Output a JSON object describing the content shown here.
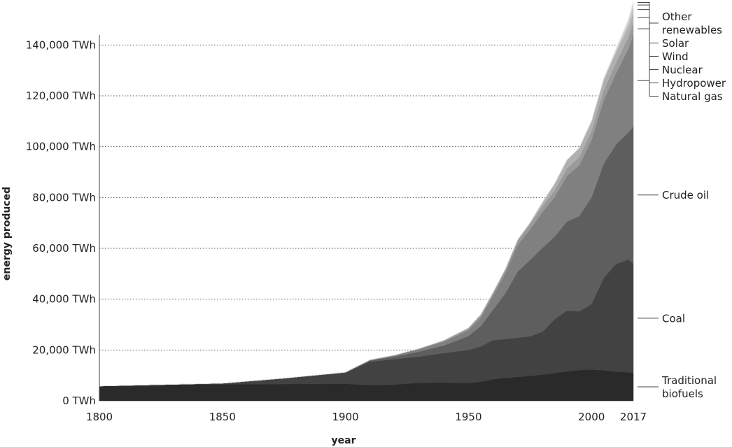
{
  "chart_data": {
    "type": "area",
    "stacked": true,
    "xlabel": "year",
    "ylabel": "energy produced",
    "xlim": [
      1800,
      2017
    ],
    "ylim": [
      0,
      150000
    ],
    "x_ticks": [
      "1800",
      "1850",
      "1900",
      "1950",
      "2000",
      "2017"
    ],
    "y_ticks": [
      "0 TWh",
      "20,000 TWh",
      "40,000 TWh",
      "60,000 TWh",
      "80,000 TWh",
      "100,000 TWh",
      "120,000 TWh",
      "140,000 TWh"
    ],
    "grid": "horizontal dotted",
    "x": [
      1800,
      1825,
      1850,
      1875,
      1900,
      1910,
      1920,
      1930,
      1940,
      1950,
      1955,
      1960,
      1965,
      1970,
      1975,
      1980,
      1985,
      1990,
      1995,
      2000,
      2005,
      2010,
      2015,
      2017
    ],
    "series": [
      {
        "name": "Traditional biofuels",
        "color": "#2a2a2a",
        "values": [
          5800,
          6300,
          6500,
          6600,
          6700,
          6200,
          6400,
          7100,
          7200,
          7000,
          7500,
          8500,
          9000,
          9400,
          9800,
          10300,
          10900,
          11600,
          12100,
          12300,
          12000,
          11500,
          11200,
          11000
        ]
      },
      {
        "name": "Coal",
        "color": "#424242",
        "values": [
          0,
          50,
          400,
          2300,
          4300,
          9200,
          10000,
          10300,
          11600,
          13000,
          13900,
          15400,
          15300,
          15400,
          15600,
          16800,
          21200,
          23900,
          23100,
          25700,
          36400,
          42400,
          44400,
          43000
        ]
      },
      {
        "name": "Crude oil",
        "color": "#5e5e5e",
        "values": [
          0,
          0,
          0,
          0,
          200,
          500,
          1000,
          2000,
          3000,
          5500,
          8000,
          12000,
          18000,
          26000,
          30000,
          33000,
          32500,
          35000,
          37500,
          42000,
          45000,
          47000,
          50000,
          54000
        ]
      },
      {
        "name": "Natural gas",
        "color": "#808080",
        "values": [
          0,
          0,
          0,
          0,
          50,
          200,
          500,
          1000,
          1500,
          2300,
          3500,
          5500,
          8000,
          10500,
          12000,
          14000,
          15500,
          18000,
          20000,
          22500,
          25000,
          28000,
          33000,
          36000
        ]
      },
      {
        "name": "Hydropower",
        "color": "#9a9a9a",
        "values": [
          0,
          0,
          0,
          0,
          20,
          60,
          100,
          200,
          500,
          900,
          1100,
          1300,
          1500,
          1800,
          2000,
          2400,
          2700,
          3000,
          3200,
          3500,
          3800,
          4200,
          4600,
          4800
        ]
      },
      {
        "name": "Nuclear",
        "color": "#b0b0b0",
        "values": [
          0,
          0,
          0,
          0,
          0,
          0,
          0,
          0,
          0,
          0,
          0,
          20,
          100,
          300,
          700,
          1500,
          2600,
          3200,
          3500,
          3900,
          4100,
          4000,
          3800,
          3900
        ]
      },
      {
        "name": "Wind",
        "color": "#c4c4c4",
        "values": [
          0,
          0,
          0,
          0,
          0,
          0,
          0,
          0,
          0,
          0,
          0,
          0,
          0,
          0,
          0,
          0,
          0,
          10,
          20,
          80,
          250,
          800,
          1900,
          2500
        ]
      },
      {
        "name": "Solar",
        "color": "#d4d4d4",
        "values": [
          0,
          0,
          0,
          0,
          0,
          0,
          0,
          0,
          0,
          0,
          0,
          0,
          0,
          0,
          0,
          0,
          0,
          0,
          0,
          5,
          20,
          200,
          600,
          1100
        ]
      },
      {
        "name": "Other renewables",
        "color": "#e2e2e2",
        "values": [
          0,
          0,
          0,
          0,
          0,
          0,
          0,
          0,
          0,
          0,
          0,
          0,
          0,
          0,
          50,
          100,
          150,
          200,
          250,
          350,
          450,
          600,
          800,
          900
        ]
      }
    ],
    "labels": [
      {
        "series": 0,
        "lines": [
          "Traditional",
          "biofuels"
        ]
      },
      {
        "series": 1,
        "lines": [
          "Coal"
        ]
      },
      {
        "series": 2,
        "lines": [
          "Crude oil"
        ]
      },
      {
        "series": 3,
        "lines": [
          "Natural gas"
        ]
      },
      {
        "series": 4,
        "lines": [
          "Hydropower"
        ]
      },
      {
        "series": 5,
        "lines": [
          "Nuclear"
        ]
      },
      {
        "series": 6,
        "lines": [
          "Wind"
        ]
      },
      {
        "series": 7,
        "lines": [
          "Solar"
        ]
      },
      {
        "series": 8,
        "lines": [
          "Other",
          "renewables"
        ]
      }
    ]
  }
}
